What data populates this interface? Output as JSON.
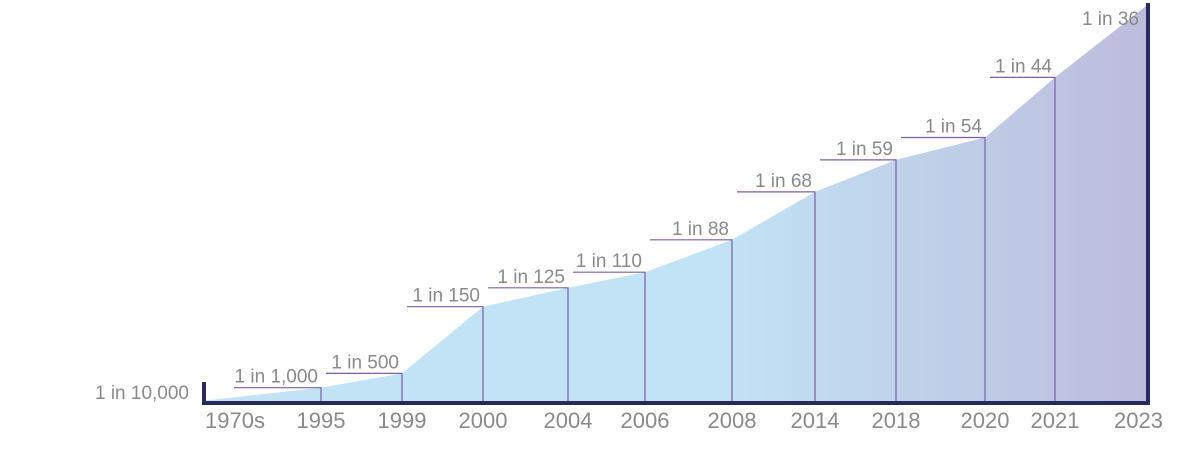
{
  "chart_data": {
    "type": "area",
    "categories": [
      "1970s",
      "1995",
      "1999",
      "2000",
      "2004",
      "2006",
      "2008",
      "2014",
      "2018",
      "2020",
      "2021",
      "2023"
    ],
    "labels": [
      "1 in 10,000",
      "1 in 1,000",
      "1 in 500",
      "1 in 150",
      "1 in 125",
      "1 in 110",
      "1 in 88",
      "1 in 68",
      "1 in 59",
      "1 in 54",
      "1 in 44",
      "1 in 36"
    ],
    "values": [
      0.0001,
      0.001,
      0.002,
      0.00667,
      0.008,
      0.00909,
      0.01136,
      0.01471,
      0.01695,
      0.01852,
      0.02273,
      0.02778
    ],
    "ylim": [
      0,
      0.0278
    ],
    "grid": false,
    "legend": "none"
  },
  "colors": {
    "fill_start": "#c2e3f5",
    "fill_end": "#bdbcdc",
    "axis": "#262a5c",
    "leader": "#7b5ea6",
    "text": "#8a8a8a"
  }
}
